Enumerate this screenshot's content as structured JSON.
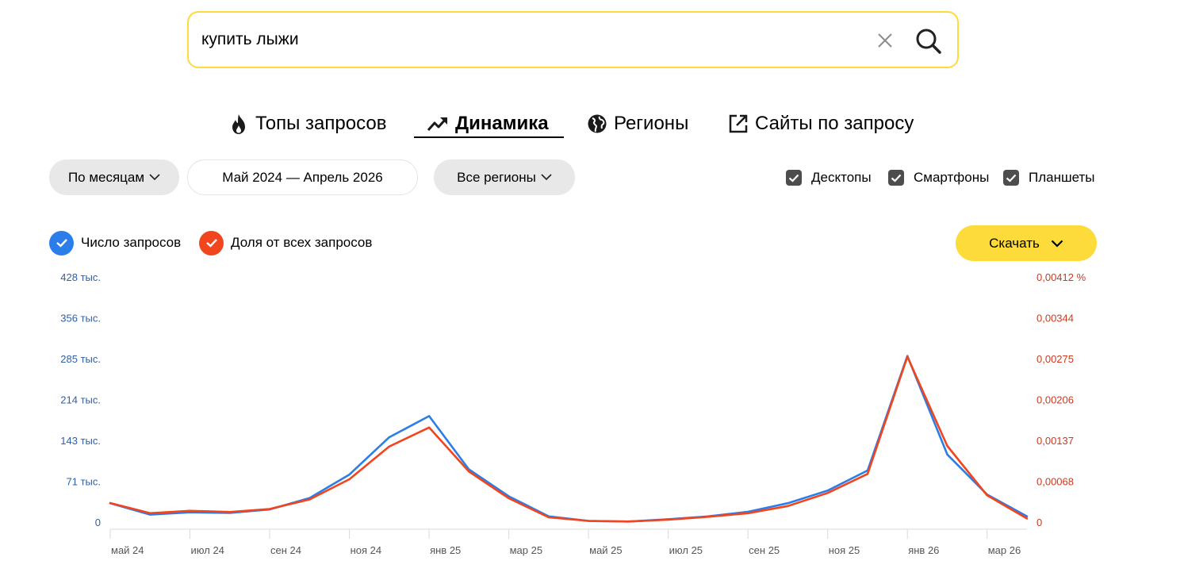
{
  "search": {
    "query": "купить лыжи"
  },
  "tabs": [
    {
      "label": "Топы запросов",
      "icon": "fire-icon",
      "active": false
    },
    {
      "label": "Динамика",
      "icon": "trend-up-icon",
      "active": true
    },
    {
      "label": "Регионы",
      "icon": "globe-icon",
      "active": false
    },
    {
      "label": "Сайты по запросу",
      "icon": "external-link-icon",
      "active": false
    }
  ],
  "filters": {
    "period_group": "По месяцам",
    "date_range": "Май 2024 — Апрель 2026",
    "region": "Все регионы"
  },
  "devices": [
    {
      "label": "Десктопы",
      "checked": true
    },
    {
      "label": "Смартфоны",
      "checked": true
    },
    {
      "label": "Планшеты",
      "checked": true
    }
  ],
  "legend": [
    {
      "label": "Число запросов",
      "color": "#2b7de9",
      "checked": true
    },
    {
      "label": "Доля от всех запросов",
      "color": "#f2441d",
      "checked": true
    }
  ],
  "download_label": "Скачать",
  "chart_data": {
    "type": "line",
    "x": [
      "2024-05",
      "2024-06",
      "2024-07",
      "2024-08",
      "2024-09",
      "2024-10",
      "2024-11",
      "2024-12",
      "2025-01",
      "2025-02",
      "2025-03",
      "2025-04",
      "2025-05",
      "2025-06",
      "2025-07",
      "2025-08",
      "2025-09",
      "2025-10",
      "2025-11",
      "2025-12",
      "2026-01",
      "2026-02",
      "2026-03",
      "2026-04"
    ],
    "x_tick_labels": [
      "май 24",
      "июл 24",
      "сен 24",
      "ноя 24",
      "янв 25",
      "мар 25",
      "май 25",
      "июл 25",
      "сен 25",
      "ноя 25",
      "янв 26",
      "мар 26"
    ],
    "y_left_ticks": [
      "0",
      "71 тыс.",
      "143 тыс.",
      "214 тыс.",
      "285 тыс.",
      "356 тыс.",
      "428 тыс."
    ],
    "y_right_ticks": [
      "0",
      "0,00068",
      "0,00137",
      "0,00206",
      "0,00275",
      "0,00344",
      "0,00412 %"
    ],
    "ylim_left": [
      0,
      428000
    ],
    "ylim_right": [
      0,
      0.00412
    ],
    "series": [
      {
        "name": "Число запросов",
        "axis": "left",
        "color": "#2b7de9",
        "values": [
          33000,
          13000,
          17000,
          16000,
          22000,
          42000,
          83000,
          148000,
          185000,
          92000,
          45000,
          10000,
          2000,
          1000,
          5000,
          10000,
          18000,
          33000,
          55000,
          90000,
          290000,
          118000,
          48000,
          10000
        ]
      },
      {
        "name": "Доля от всех запросов",
        "axis": "right",
        "color": "#f2441d",
        "values": [
          0.00032,
          0.00015,
          0.00019,
          0.00017,
          0.00022,
          0.00038,
          0.00072,
          0.00127,
          0.00159,
          0.00085,
          0.0004,
          8e-05,
          2e-05,
          1e-05,
          4e-05,
          9e-05,
          0.00015,
          0.00027,
          0.00049,
          0.00081,
          0.00278,
          0.00128,
          0.00045,
          6e-05
        ]
      }
    ]
  }
}
